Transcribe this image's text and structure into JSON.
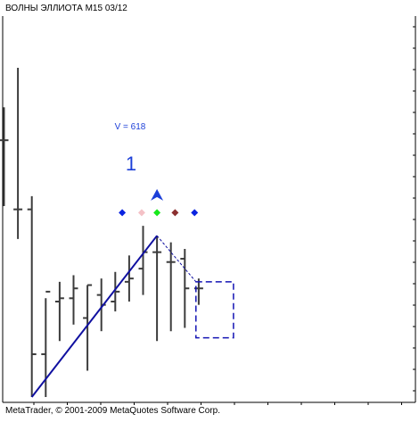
{
  "window": {
    "title": "ВОЛНЫ ЭЛЛИОТА M15 03/12",
    "footer": "MetaTrader, © 2001-2009 MetaQuotes Software Corp."
  },
  "annotations": {
    "label_v": "V = 618",
    "wave_number": "1"
  },
  "colors": {
    "background": "#ffffff",
    "frame": "#000000",
    "bars": "#3c3c3c",
    "wave_line": "#1010a0",
    "annotation_text": "#1c3fd8",
    "marker_blue": "#0a24e0",
    "marker_pink": "#f4c1c6",
    "marker_green": "#18e81c",
    "marker_brown": "#8b3030",
    "target_box": "#1414b4"
  },
  "icons": {
    "wave_marker": "arrow-up-icon",
    "level_markers": "diamond-icon"
  },
  "chart_data": {
    "type": "ohlc",
    "series": [
      {
        "name": "",
        "values": [
          {
            "o": 0.78,
            "h": 0.88,
            "l": 0.58,
            "c": 0.78
          },
          {
            "o": 0.57,
            "h": 1.0,
            "l": 0.48,
            "c": 0.57
          },
          {
            "o": 0.57,
            "h": 0.61,
            "l": 0.0,
            "c": 0.13
          },
          {
            "o": 0.13,
            "h": 0.3,
            "l": 0.0,
            "c": 0.32
          },
          {
            "o": 0.29,
            "h": 0.35,
            "l": 0.17,
            "c": 0.3
          },
          {
            "o": 0.3,
            "h": 0.37,
            "l": 0.22,
            "c": 0.33
          },
          {
            "o": 0.24,
            "h": 0.34,
            "l": 0.08,
            "c": 0.34
          },
          {
            "o": 0.31,
            "h": 0.36,
            "l": 0.2,
            "c": 0.28
          },
          {
            "o": 0.29,
            "h": 0.38,
            "l": 0.26,
            "c": 0.32
          },
          {
            "o": 0.35,
            "h": 0.43,
            "l": 0.29,
            "c": 0.36
          },
          {
            "o": 0.39,
            "h": 0.52,
            "l": 0.31,
            "c": 0.44
          },
          {
            "o": 0.44,
            "h": 0.49,
            "l": 0.17,
            "c": 0.44
          },
          {
            "o": 0.41,
            "h": 0.47,
            "l": 0.2,
            "c": 0.41
          },
          {
            "o": 0.42,
            "h": 0.45,
            "l": 0.21,
            "c": 0.33
          },
          {
            "o": 0.33,
            "h": 0.36,
            "l": 0.28,
            "c": 0.33
          }
        ]
      }
    ],
    "wave_path": [
      {
        "bar": 2,
        "price": 0.0
      },
      {
        "bar": 11,
        "price": 0.49
      },
      {
        "bar": 13.8,
        "price": 0.35
      }
    ],
    "target_zone": {
      "bar_from": 13.8,
      "bar_to": 16.5,
      "price_from": 0.18,
      "price_to": 0.35
    },
    "level_markers": [
      {
        "bar": 8.5,
        "price": 0.56,
        "color": "#0a24e0"
      },
      {
        "bar": 9.9,
        "price": 0.56,
        "color": "#f4c1c6"
      },
      {
        "bar": 11.0,
        "price": 0.56,
        "color": "#18e81c"
      },
      {
        "bar": 12.3,
        "price": 0.56,
        "color": "#8b3030"
      },
      {
        "bar": 13.7,
        "price": 0.56,
        "color": "#0a24e0"
      }
    ],
    "wave_marker": {
      "bar": 11.0,
      "price": 0.61
    },
    "xlabel": "",
    "ylabel": "",
    "ylim": [
      0,
      1
    ],
    "grid": false,
    "legend": "none"
  }
}
